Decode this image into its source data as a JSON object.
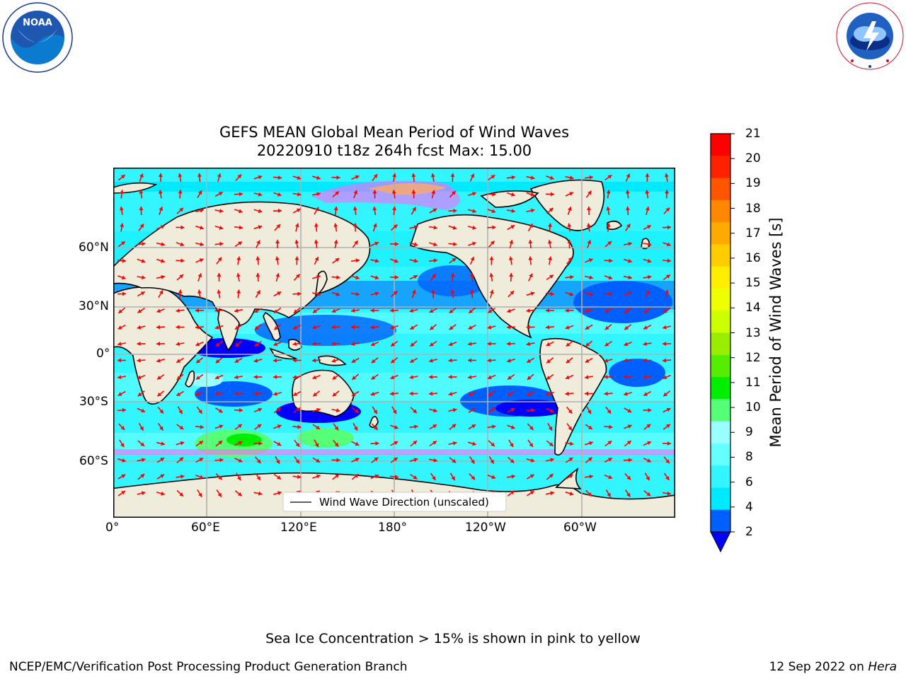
{
  "title": {
    "line1": "GEFS MEAN Global Mean Period of Wind Waves",
    "line2": "20220910 t18z 264h fcst   Max: 15.00"
  },
  "logos": {
    "noaa": {
      "text": "NOAA",
      "ring_text": "NATIONAL OCEANIC AND ATMOSPHERIC ADMINISTRATION · U.S. DEPARTMENT OF COMMERCE"
    },
    "nws": {
      "ring_text": "NATIONAL WEATHER SERVICE"
    }
  },
  "map": {
    "lat_labels": [
      "60°N",
      "30°N",
      "0°",
      "30°S",
      "60°S"
    ],
    "lon_labels": [
      "0°",
      "60°E",
      "120°E",
      "180°",
      "120°W",
      "60°W"
    ],
    "legend_label": "Wind Wave Direction (unscaled)",
    "colors": {
      "land": "#efecdc",
      "arrow": "#ff0000",
      "grid": "#b0b0b0"
    }
  },
  "colorbar": {
    "label": "Mean Period of Wind Waves [s]",
    "ticks": [
      "2",
      "4",
      "6",
      "8",
      "9",
      "10",
      "11",
      "12",
      "13",
      "14",
      "15",
      "16",
      "17",
      "18",
      "19",
      "20",
      "21"
    ],
    "colors": [
      "#0060ff",
      "#00eaff",
      "#33f5ff",
      "#66ffff",
      "#99ffff",
      "#55ff77",
      "#00ee00",
      "#55ee00",
      "#99ee00",
      "#ccff00",
      "#eeff00",
      "#ffee00",
      "#ffcc00",
      "#ffaa00",
      "#ff8800",
      "#ff5500",
      "#ff2200",
      "#ff0000"
    ],
    "extend_color": "#0000ff"
  },
  "footer": {
    "sea_ice_note": "Sea Ice Concentration > 15% is shown in pink to yellow",
    "branch": "NCEP/EMC/Verification Post Processing Product Generation Branch",
    "date": "12 Sep 2022 on ",
    "machine": "Hera"
  }
}
